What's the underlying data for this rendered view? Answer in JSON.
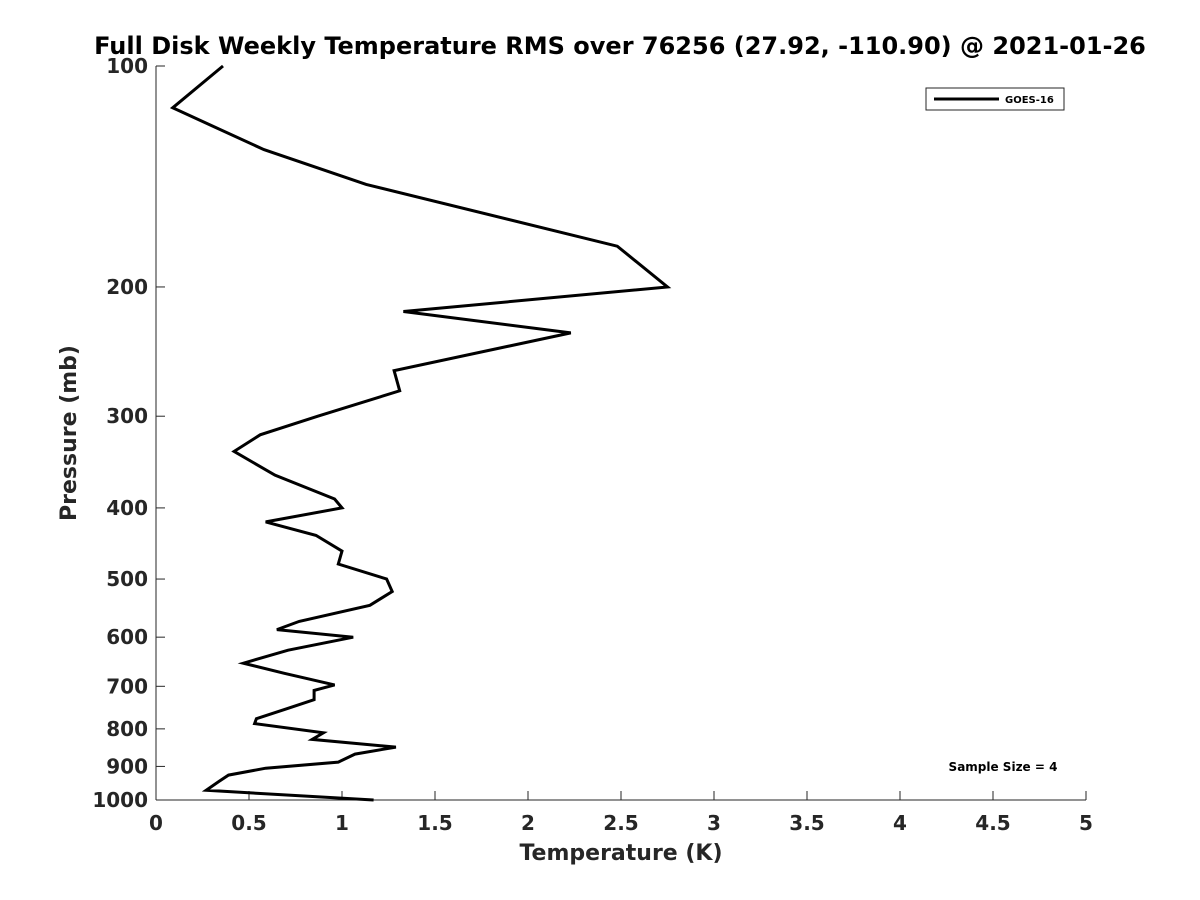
{
  "chart_data": {
    "type": "line",
    "title": "Full Disk Weekly Temperature RMS over 76256 (27.92, -110.90) @ 2021-01-26",
    "xlabel": "Temperature (K)",
    "ylabel": "Pressure (mb)",
    "xlim": [
      0,
      5
    ],
    "ylim": [
      100,
      1000
    ],
    "y_scale": "log",
    "y_reversed": true,
    "grid": false,
    "legend_position": "top-right",
    "x_ticks": [
      "0",
      "0.5",
      "1",
      "1.5",
      "2",
      "2.5",
      "3",
      "3.5",
      "4",
      "4.5",
      "5"
    ],
    "y_ticks": [
      "100",
      "200",
      "300",
      "400",
      "500",
      "600",
      "700",
      "800",
      "900",
      "1000"
    ],
    "annotation": "Sample Size = 4",
    "series": [
      {
        "name": "GOES-16",
        "color": "#000000",
        "x": [
          0.36,
          0.09,
          0.58,
          1.13,
          2.48,
          2.75,
          1.33,
          2.23,
          1.28,
          1.31,
          0.87,
          0.56,
          0.42,
          0.64,
          0.96,
          1.0,
          0.59,
          0.86,
          1.0,
          0.98,
          1.24,
          1.27,
          1.15,
          0.77,
          0.65,
          1.06,
          0.71,
          0.47,
          0.69,
          0.96,
          0.85,
          0.85,
          0.69,
          0.54,
          0.53,
          0.9,
          0.84,
          1.29,
          1.07,
          0.98,
          0.59,
          0.39,
          0.34,
          0.27,
          1.17
        ],
        "y": [
          100,
          114,
          130,
          145,
          176,
          200,
          216,
          231,
          260,
          277,
          300,
          318,
          335,
          361,
          389,
          400,
          418,
          436,
          458,
          477,
          500,
          520,
          543,
          571,
          586,
          600,
          625,
          651,
          672,
          697,
          709,
          730,
          753,
          775,
          787,
          810,
          827,
          847,
          866,
          888,
          905,
          925,
          943,
          970,
          1000
        ]
      }
    ]
  }
}
